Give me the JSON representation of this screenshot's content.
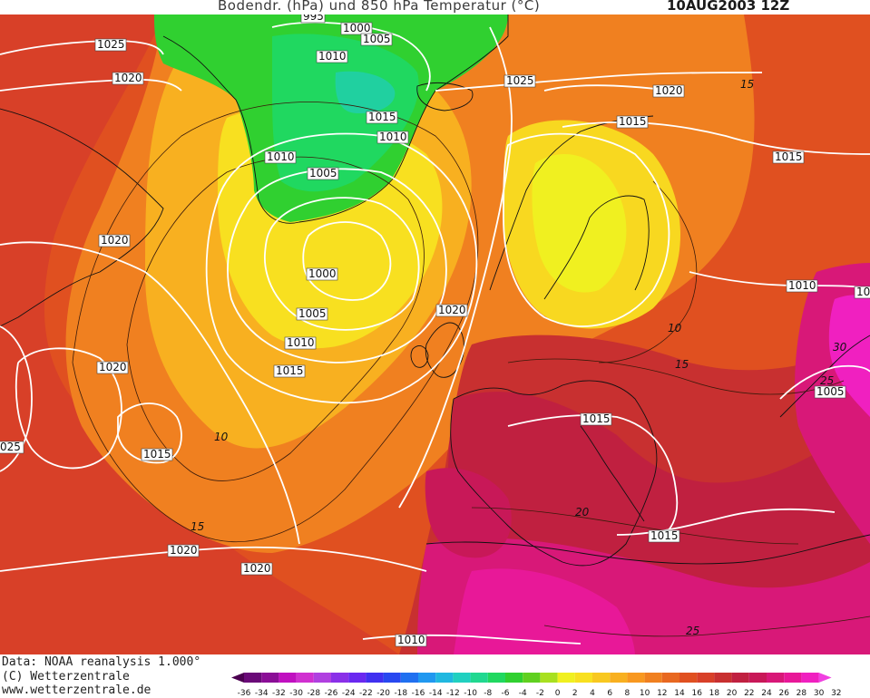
{
  "header": {
    "title": "Bodendr. (hPa) und 850 hPa Temperatur (°C)",
    "date": "10AUG2003 12Z"
  },
  "footer": {
    "data_source": "Data: NOAA reanalysis 1.000°",
    "copyright": "(C) Wetterzentrale",
    "website": "www.wetterzentrale.de"
  },
  "legend": {
    "ticks": [
      "-36",
      "-34",
      "-32",
      "-30",
      "-28",
      "-26",
      "-24",
      "-22",
      "-20",
      "-18",
      "-16",
      "-14",
      "-12",
      "-10",
      "-8",
      "-6",
      "-4",
      "-2",
      "0",
      "2",
      "4",
      "6",
      "8",
      "10",
      "12",
      "14",
      "16",
      "18",
      "20",
      "22",
      "24",
      "26",
      "28",
      "30",
      "32"
    ],
    "colors": [
      "#4b0050",
      "#6a0a78",
      "#8a0e96",
      "#c010c0",
      "#d030d0",
      "#b040e0",
      "#8a30e8",
      "#6a28f0",
      "#4030f0",
      "#2848f0",
      "#2070f0",
      "#2098f0",
      "#20b8e0",
      "#20d0c0",
      "#20d890",
      "#20d860",
      "#30d030",
      "#60d020",
      "#a8e020",
      "#f0f020",
      "#f8e020",
      "#f8c820",
      "#f8b020",
      "#f89820",
      "#f08020",
      "#e86820",
      "#e05020",
      "#d84028",
      "#c83030",
      "#c02040",
      "#c81858",
      "#d81878",
      "#e81898",
      "#f020c0",
      "#f040e0"
    ]
  },
  "isobar_labels": [
    {
      "text": "995"
    },
    {
      "text": "1000"
    },
    {
      "text": "1005"
    },
    {
      "text": "1010"
    },
    {
      "text": "1025"
    },
    {
      "text": "1020"
    },
    {
      "text": "1015"
    },
    {
      "text": "1010"
    },
    {
      "text": "1010"
    },
    {
      "text": "1005"
    },
    {
      "text": "1025"
    },
    {
      "text": "1020"
    },
    {
      "text": "1015"
    },
    {
      "text": "1015"
    },
    {
      "text": "1020"
    },
    {
      "text": "1000"
    },
    {
      "text": "1005"
    },
    {
      "text": "1010"
    },
    {
      "text": "1015"
    },
    {
      "text": "1020"
    },
    {
      "text": "1020"
    },
    {
      "text": "1010"
    },
    {
      "text": "10"
    },
    {
      "text": "1005"
    },
    {
      "text": "025"
    },
    {
      "text": "1015"
    },
    {
      "text": "1015"
    },
    {
      "text": "1020"
    },
    {
      "text": "1020"
    },
    {
      "text": "1015"
    },
    {
      "text": "1010"
    }
  ],
  "temperature_labels": [
    {
      "text": "15"
    },
    {
      "text": "10"
    },
    {
      "text": "10"
    },
    {
      "text": "15"
    },
    {
      "text": "15"
    },
    {
      "text": "20"
    },
    {
      "text": "25"
    },
    {
      "text": "30"
    },
    {
      "text": "25"
    }
  ]
}
